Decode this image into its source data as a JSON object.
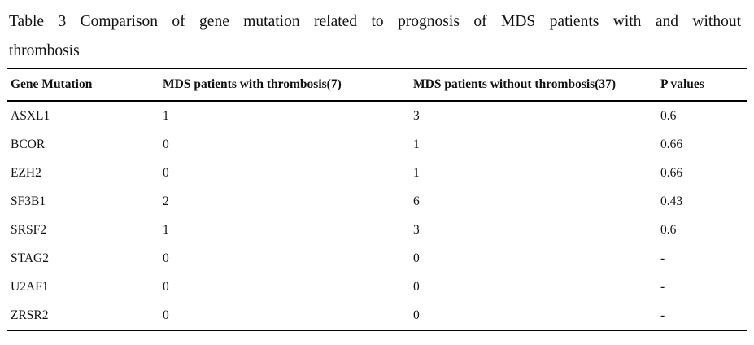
{
  "page": {
    "background_color": "#ffffff",
    "text_color": "#111111",
    "rule_color": "#000000"
  },
  "title": {
    "text": "Table 3 Comparison of gene mutation related to prognosis of MDS patients with and without thrombosis",
    "line1": "Table 3 Comparison of gene mutation related to prognosis of MDS patients with and without",
    "line2": "thrombosis"
  },
  "table": {
    "headers": [
      "Gene Mutation",
      "MDS patients with thrombosis(7)",
      "MDS patients without thrombosis(37)",
      "P values"
    ],
    "rows": [
      {
        "gene": "ASXL1",
        "with_thrombosis": "1",
        "without_thrombosis": "3",
        "p_value": "0.6"
      },
      {
        "gene": "BCOR",
        "with_thrombosis": "0",
        "without_thrombosis": "1",
        "p_value": "0.66"
      },
      {
        "gene": "EZH2",
        "with_thrombosis": "0",
        "without_thrombosis": "1",
        "p_value": "0.66"
      },
      {
        "gene": "SF3B1",
        "with_thrombosis": "2",
        "without_thrombosis": "6",
        "p_value": "0.43"
      },
      {
        "gene": "SRSF2",
        "with_thrombosis": "1",
        "without_thrombosis": "3",
        "p_value": "0.6"
      },
      {
        "gene": "STAG2",
        "with_thrombosis": "0",
        "without_thrombosis": "0",
        "p_value": "-"
      },
      {
        "gene": "U2AF1",
        "with_thrombosis": "0",
        "without_thrombosis": "0",
        "p_value": "-"
      },
      {
        "gene": "ZRSR2",
        "with_thrombosis": "0",
        "without_thrombosis": "0",
        "p_value": "-"
      }
    ],
    "column_keys": [
      "gene",
      "with_thrombosis",
      "without_thrombosis",
      "p_value"
    ]
  }
}
